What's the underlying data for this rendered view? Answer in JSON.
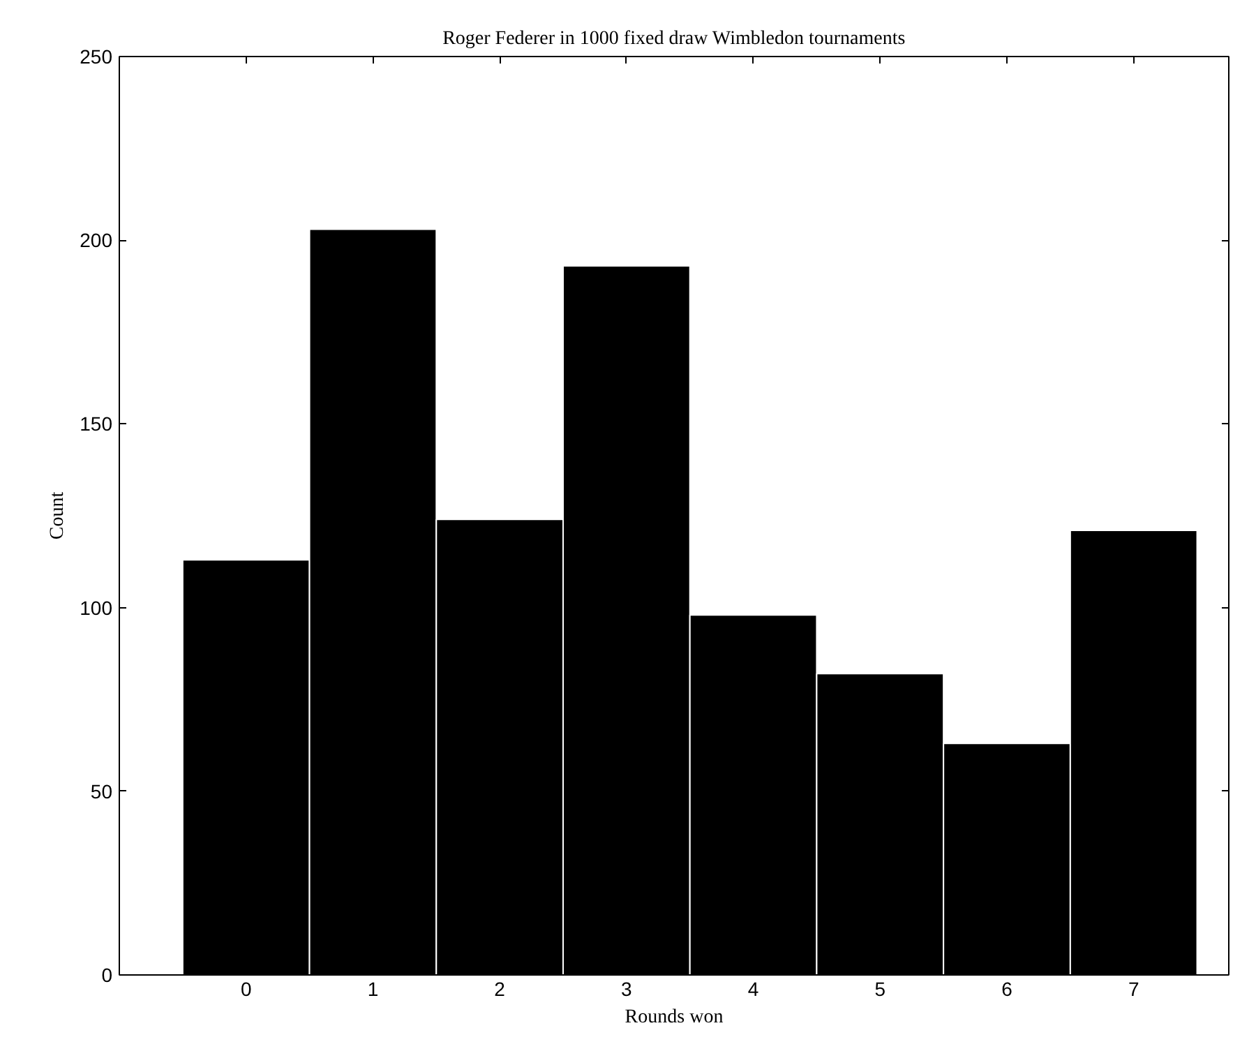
{
  "chart_data": {
    "type": "histogram",
    "title": "Roger Federer in 1000 fixed draw Wimbledon tournaments",
    "xlabel": "Rounds won",
    "ylabel": "Count",
    "bins": [
      -0.5,
      0.5,
      1.5,
      2.5,
      3.5,
      4.5,
      5.5,
      6.5,
      7.5
    ],
    "values": [
      113,
      203,
      124,
      193,
      98,
      82,
      63,
      121
    ],
    "color": "#000000",
    "xlim": [
      -1,
      7.75
    ],
    "ylim": [
      0,
      250
    ],
    "xticks": [
      0,
      1,
      2,
      3,
      4,
      5,
      6,
      7
    ],
    "yticks": [
      0,
      50,
      100,
      150,
      200,
      250
    ],
    "grid": false
  }
}
